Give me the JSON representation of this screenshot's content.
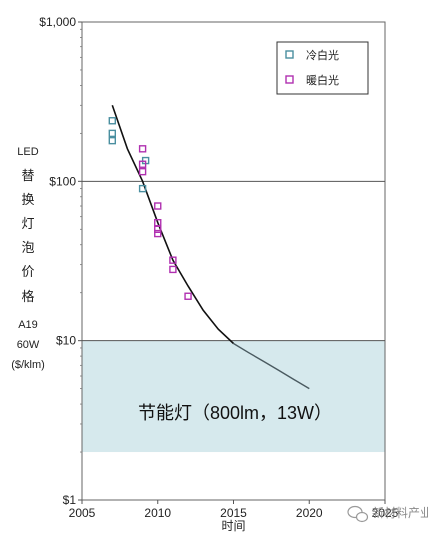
{
  "chart_data": {
    "type": "scatter",
    "ylabel_lines": [
      "LED",
      "替",
      "换",
      "灯",
      "泡",
      "价",
      "格",
      "A19",
      "60W",
      "($/klm)"
    ],
    "xlabel": "时间",
    "x_ticks": [
      2005,
      2010,
      2015,
      2020,
      2025
    ],
    "y_ticks": [
      1,
      10,
      100,
      1000
    ],
    "y_tick_labels": [
      "$1",
      "$10",
      "$100",
      "$1,000"
    ],
    "xlim": [
      2005,
      2025
    ],
    "ylim": [
      1,
      1000
    ],
    "yscale": "log",
    "legend_position": "top-right",
    "series": [
      {
        "name": "冷白光",
        "color": "#4a8fa0",
        "marker": "square",
        "points": [
          [
            2007,
            240
          ],
          [
            2007,
            200
          ],
          [
            2007,
            180
          ],
          [
            2009.2,
            135
          ],
          [
            2009,
            90
          ]
        ]
      },
      {
        "name": "暖白光",
        "color": "#b030b0",
        "marker": "square",
        "points": [
          [
            2009,
            160
          ],
          [
            2009,
            128
          ],
          [
            2009,
            115
          ],
          [
            2010,
            70
          ],
          [
            2010,
            55
          ],
          [
            2010,
            50
          ],
          [
            2010,
            47
          ],
          [
            2011,
            32
          ],
          [
            2011,
            28
          ],
          [
            2012,
            19
          ]
        ]
      }
    ],
    "trend": {
      "color": "#111111",
      "projected_color": "#4a5a60",
      "points": [
        [
          2007,
          300
        ],
        [
          2008,
          160
        ],
        [
          2009,
          100
        ],
        [
          2010,
          55
        ],
        [
          2011,
          32
        ],
        [
          2012,
          22
        ],
        [
          2013,
          15.5
        ],
        [
          2014,
          11.8
        ],
        [
          2015,
          9.6
        ]
      ],
      "projected_points": [
        [
          2015,
          9.6
        ],
        [
          2016,
          8.4
        ],
        [
          2017,
          7.4
        ],
        [
          2018,
          6.5
        ],
        [
          2019,
          5.7
        ],
        [
          2020,
          5.0
        ]
      ]
    },
    "target_band": {
      "ymin": 2,
      "ymax": 10,
      "color": "#d6e9ed"
    },
    "annotation": "节能灯（800lm，13W）"
  },
  "watermark": "新材料产业"
}
